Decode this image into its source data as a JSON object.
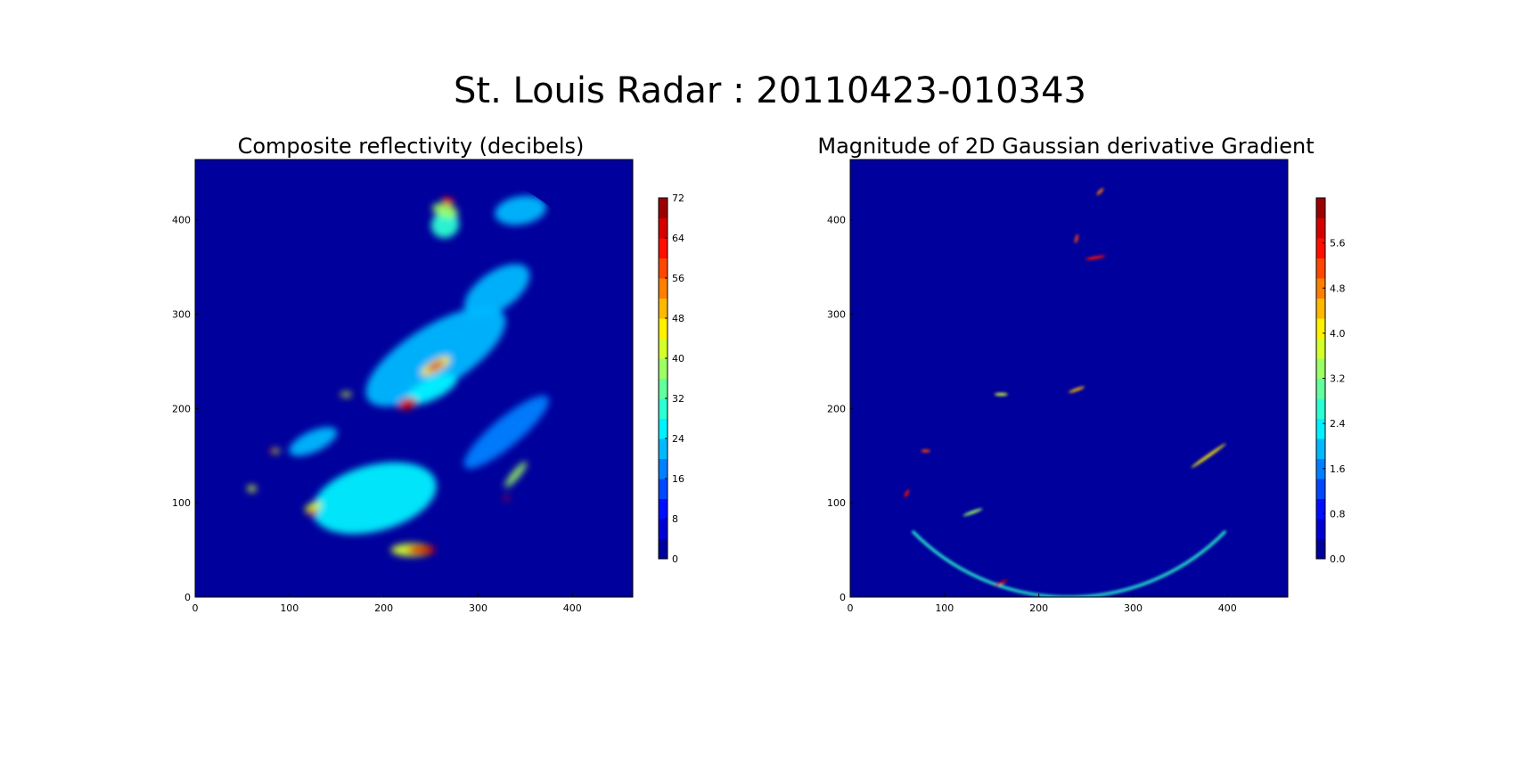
{
  "figure": {
    "suptitle": "St. Louis Radar : 20110423-010343",
    "colormap": "jet"
  },
  "chart_data": [
    {
      "type": "heatmap",
      "title": "Composite reflectivity (decibels)",
      "xlabel": "",
      "ylabel": "",
      "xlim": [
        0,
        464
      ],
      "ylim": [
        0,
        464
      ],
      "x_ticks": [
        0,
        100,
        200,
        300,
        400
      ],
      "y_ticks": [
        0,
        100,
        200,
        300,
        400
      ],
      "grid": false,
      "background_value": 0,
      "colorbar": {
        "range": [
          0,
          72
        ],
        "ticks": [
          "0",
          "8",
          "16",
          "24",
          "32",
          "40",
          "48",
          "56",
          "64",
          "72"
        ],
        "levels": 18,
        "position": "right"
      },
      "radar_center": [
        232,
        232
      ],
      "radar_range": 232,
      "echoes": [
        {
          "x": 255,
          "y": 255,
          "value": 22,
          "sx": 170,
          "sy": 65,
          "angle": 32
        },
        {
          "x": 320,
          "y": 325,
          "value": 20,
          "sx": 80,
          "sy": 40,
          "angle": 35
        },
        {
          "x": 190,
          "y": 105,
          "value": 24,
          "sx": 135,
          "sy": 70,
          "angle": 15
        },
        {
          "x": 330,
          "y": 175,
          "value": 16,
          "sx": 115,
          "sy": 30,
          "angle": 40
        },
        {
          "x": 125,
          "y": 165,
          "value": 20,
          "sx": 55,
          "sy": 22,
          "angle": 25
        },
        {
          "x": 250,
          "y": 220,
          "value": 26,
          "sx": 60,
          "sy": 22,
          "angle": 25
        },
        {
          "x": 345,
          "y": 410,
          "value": 20,
          "sx": 55,
          "sy": 30,
          "angle": 10
        },
        {
          "x": 265,
          "y": 395,
          "value": 28,
          "sx": 30,
          "sy": 28,
          "angle": 30
        },
        {
          "x": 230,
          "y": 50,
          "value": 40,
          "sx": 45,
          "sy": 14,
          "angle": 0
        },
        {
          "x": 255,
          "y": 245,
          "value": 44,
          "sx": 35,
          "sy": 12,
          "angle": 30
        },
        {
          "x": 340,
          "y": 130,
          "value": 36,
          "sx": 35,
          "sy": 8,
          "angle": 50
        },
        {
          "x": 125,
          "y": 95,
          "value": 42,
          "sx": 18,
          "sy": 10,
          "angle": 25
        },
        {
          "x": 60,
          "y": 115,
          "value": 40,
          "sx": 10,
          "sy": 7,
          "angle": 0
        },
        {
          "x": 85,
          "y": 155,
          "value": 42,
          "sx": 10,
          "sy": 5,
          "angle": 0
        },
        {
          "x": 160,
          "y": 215,
          "value": 42,
          "sx": 12,
          "sy": 5,
          "angle": 0
        },
        {
          "x": 265,
          "y": 410,
          "value": 38,
          "sx": 14,
          "sy": 28,
          "angle": 75
        },
        {
          "x": 240,
          "y": 50,
          "value": 64,
          "sx": 30,
          "sy": 10,
          "angle": 0
        },
        {
          "x": 125,
          "y": 90,
          "value": 64,
          "sx": 10,
          "sy": 7,
          "angle": 25
        },
        {
          "x": 225,
          "y": 205,
          "value": 66,
          "sx": 20,
          "sy": 12,
          "angle": 20
        },
        {
          "x": 255,
          "y": 245,
          "value": 66,
          "sx": 20,
          "sy": 7,
          "angle": 30
        },
        {
          "x": 82,
          "y": 155,
          "value": 62,
          "sx": 6,
          "sy": 4,
          "angle": 0
        },
        {
          "x": 330,
          "y": 105,
          "value": 60,
          "sx": 6,
          "sy": 4,
          "angle": 0
        },
        {
          "x": 268,
          "y": 420,
          "value": 60,
          "sx": 8,
          "sy": 12,
          "angle": 75
        }
      ]
    },
    {
      "type": "heatmap",
      "title": "Magnitude of 2D Gaussian derivative Gradient",
      "xlabel": "",
      "ylabel": "",
      "xlim": [
        0,
        464
      ],
      "ylim": [
        0,
        464
      ],
      "x_ticks": [
        0,
        100,
        200,
        300,
        400
      ],
      "y_ticks": [
        0,
        100,
        200,
        300,
        400
      ],
      "grid": false,
      "background_value": 0,
      "colorbar": {
        "range": [
          0,
          6.4
        ],
        "ticks": [
          "0.0",
          "0.8",
          "1.6",
          "2.4",
          "3.2",
          "4.0",
          "4.8",
          "5.6"
        ],
        "levels": 18,
        "position": "right"
      },
      "edge_ridges": [
        {
          "x": 232,
          "y": 232,
          "value": 2.6,
          "ring": true,
          "r": 232,
          "width": 3,
          "min_y": 0,
          "max_y": 70
        },
        {
          "x": 160,
          "y": 15,
          "value": 6.0,
          "sx": 15,
          "sy": 3,
          "angle": 25
        },
        {
          "x": 380,
          "y": 150,
          "value": 4.2,
          "sx": 45,
          "sy": 3,
          "angle": 35
        },
        {
          "x": 60,
          "y": 110,
          "value": 5.6,
          "sx": 10,
          "sy": 3,
          "angle": 60
        },
        {
          "x": 80,
          "y": 155,
          "value": 5.2,
          "sx": 10,
          "sy": 3,
          "angle": 0
        },
        {
          "x": 240,
          "y": 220,
          "value": 4.6,
          "sx": 18,
          "sy": 3,
          "angle": 20
        },
        {
          "x": 160,
          "y": 215,
          "value": 3.6,
          "sx": 14,
          "sy": 3,
          "angle": 0
        },
        {
          "x": 240,
          "y": 380,
          "value": 5.2,
          "sx": 10,
          "sy": 3,
          "angle": 75
        },
        {
          "x": 260,
          "y": 360,
          "value": 5.6,
          "sx": 22,
          "sy": 3,
          "angle": 10
        },
        {
          "x": 265,
          "y": 430,
          "value": 4.8,
          "sx": 10,
          "sy": 3,
          "angle": 45
        },
        {
          "x": 130,
          "y": 90,
          "value": 3.4,
          "sx": 22,
          "sy": 3,
          "angle": 20
        }
      ]
    }
  ]
}
